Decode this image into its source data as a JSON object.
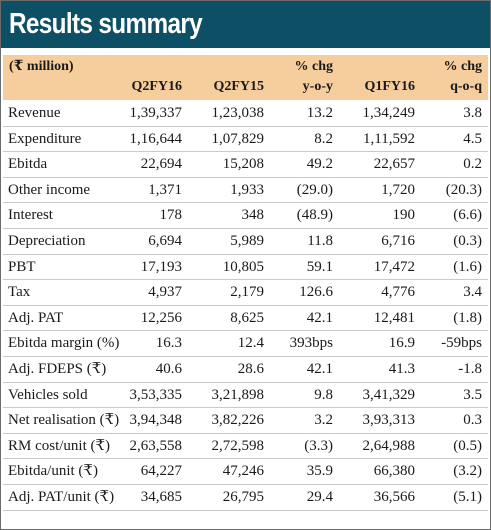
{
  "title": "Results summary",
  "header": {
    "unit": "(₹ million)",
    "columns": [
      {
        "line1": "",
        "line2": "Q2FY16"
      },
      {
        "line1": "",
        "line2": "Q2FY15"
      },
      {
        "line1": "% chg",
        "line2": "y-o-y"
      },
      {
        "line1": "",
        "line2": "Q1FY16"
      },
      {
        "line1": "% chg",
        "line2": "q-o-q"
      }
    ]
  },
  "rows": [
    {
      "label": "Revenue",
      "values": [
        "1,39,337",
        "1,23,038",
        "13.2",
        "1,34,249",
        "3.8"
      ]
    },
    {
      "label": "Expenditure",
      "values": [
        "1,16,644",
        "1,07,829",
        "8.2",
        "1,11,592",
        "4.5"
      ]
    },
    {
      "label": "Ebitda",
      "values": [
        "22,694",
        "15,208",
        "49.2",
        "22,657",
        "0.2"
      ]
    },
    {
      "label": "Other income",
      "values": [
        "1,371",
        "1,933",
        "(29.0)",
        "1,720",
        "(20.3)"
      ]
    },
    {
      "label": "Interest",
      "values": [
        "178",
        "348",
        "(48.9)",
        "190",
        "(6.6)"
      ]
    },
    {
      "label": "Depreciation",
      "values": [
        "6,694",
        "5,989",
        "11.8",
        "6,716",
        "(0.3)"
      ]
    },
    {
      "label": "PBT",
      "values": [
        "17,193",
        "10,805",
        "59.1",
        "17,472",
        "(1.6)"
      ]
    },
    {
      "label": "Tax",
      "values": [
        "4,937",
        "2,179",
        "126.6",
        "4,776",
        "3.4"
      ]
    },
    {
      "label": "Adj. PAT",
      "values": [
        "12,256",
        "8,625",
        "42.1",
        "12,481",
        "(1.8)"
      ]
    },
    {
      "label": "Ebitda margin (%)",
      "values": [
        "16.3",
        "12.4",
        "393bps",
        "16.9",
        "-59bps"
      ]
    },
    {
      "label": "Adj. FDEPS (₹)",
      "values": [
        "40.6",
        "28.6",
        "42.1",
        "41.3",
        "-1.8"
      ]
    },
    {
      "label": "Vehicles sold",
      "values": [
        "3,53,335",
        "3,21,898",
        "9.8",
        "3,41,329",
        "3.5"
      ]
    },
    {
      "label": "Net realisation (₹)",
      "values": [
        "3,94,348",
        "3,82,226",
        "3.2",
        "3,93,313",
        "0.3"
      ]
    },
    {
      "label": "RM cost/unit (₹)",
      "values": [
        "2,63,558",
        "2,72,598",
        "(3.3)",
        "2,64,988",
        "(0.5)"
      ]
    },
    {
      "label": "Ebitda/unit (₹)",
      "values": [
        "64,227",
        "47,246",
        "35.9",
        "66,380",
        "(3.2)"
      ]
    },
    {
      "label": "Adj. PAT/unit (₹)",
      "values": [
        "34,685",
        "26,795",
        "29.4",
        "36,566",
        "(5.1)"
      ]
    }
  ],
  "colors": {
    "title_bar": "#0d4f64",
    "header_band": "#f6cd9c",
    "row_rule": "#c9c9c9"
  }
}
